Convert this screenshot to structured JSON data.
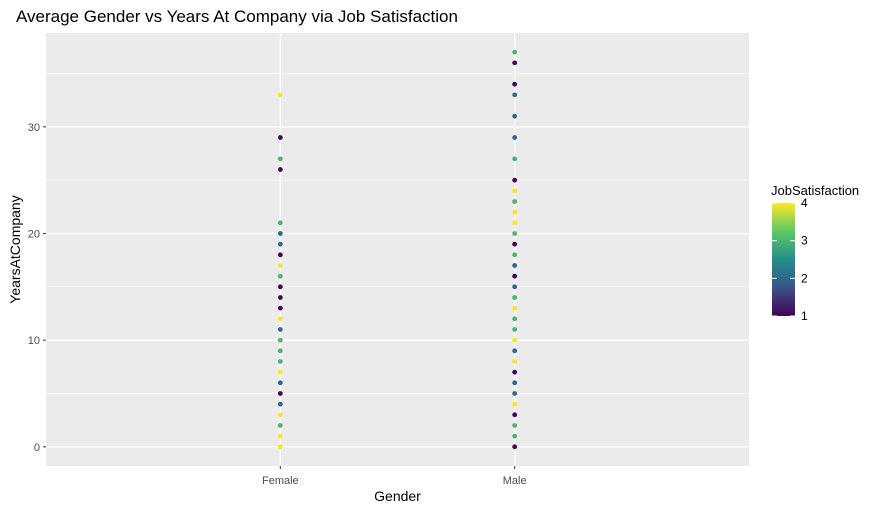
{
  "chart_data": {
    "type": "scatter",
    "title": "Average Gender vs Years At Company via Job Satisfaction",
    "xlabel": "Gender",
    "ylabel": "YearsAtCompany",
    "categories": [
      "Female",
      "Male"
    ],
    "y_ticks": [
      0,
      10,
      20,
      30
    ],
    "ylim": [
      -1.8,
      38.8
    ],
    "grid": true,
    "legend": {
      "title": "JobSatisfaction",
      "placement": "right",
      "ticks": [
        1,
        2,
        3,
        4
      ],
      "range": [
        1,
        4
      ],
      "colors": [
        "#440154",
        "#3B528B",
        "#21908C",
        "#5DC863",
        "#FDE725"
      ]
    },
    "points": [
      {
        "x": "Female",
        "y": 33,
        "c": 4
      },
      {
        "x": "Female",
        "y": 29,
        "c": 1
      },
      {
        "x": "Female",
        "y": 27,
        "c": 3
      },
      {
        "x": "Female",
        "y": 26,
        "c": 1
      },
      {
        "x": "Female",
        "y": 21,
        "c": 3
      },
      {
        "x": "Female",
        "y": 20,
        "c": 2
      },
      {
        "x": "Female",
        "y": 19,
        "c": 2
      },
      {
        "x": "Female",
        "y": 18,
        "c": 1
      },
      {
        "x": "Female",
        "y": 17,
        "c": 4
      },
      {
        "x": "Female",
        "y": 16,
        "c": 3
      },
      {
        "x": "Female",
        "y": 15,
        "c": 1
      },
      {
        "x": "Female",
        "y": 14,
        "c": 1
      },
      {
        "x": "Female",
        "y": 13,
        "c": 1
      },
      {
        "x": "Female",
        "y": 12,
        "c": 4
      },
      {
        "x": "Female",
        "y": 11,
        "c": 2
      },
      {
        "x": "Female",
        "y": 10,
        "c": 3
      },
      {
        "x": "Female",
        "y": 9,
        "c": 3
      },
      {
        "x": "Female",
        "y": 8,
        "c": 3
      },
      {
        "x": "Female",
        "y": 7,
        "c": 4
      },
      {
        "x": "Female",
        "y": 6,
        "c": 2
      },
      {
        "x": "Female",
        "y": 5,
        "c": 1
      },
      {
        "x": "Female",
        "y": 4,
        "c": 2
      },
      {
        "x": "Female",
        "y": 3,
        "c": 4
      },
      {
        "x": "Female",
        "y": 2,
        "c": 3
      },
      {
        "x": "Female",
        "y": 1,
        "c": 4
      },
      {
        "x": "Female",
        "y": 0,
        "c": 4
      },
      {
        "x": "Male",
        "y": 37,
        "c": 3
      },
      {
        "x": "Male",
        "y": 36,
        "c": 1
      },
      {
        "x": "Male",
        "y": 34,
        "c": 1
      },
      {
        "x": "Male",
        "y": 33,
        "c": 2
      },
      {
        "x": "Male",
        "y": 31,
        "c": 2
      },
      {
        "x": "Male",
        "y": 29,
        "c": 2
      },
      {
        "x": "Male",
        "y": 27,
        "c": 3
      },
      {
        "x": "Male",
        "y": 25,
        "c": 1
      },
      {
        "x": "Male",
        "y": 24,
        "c": 4
      },
      {
        "x": "Male",
        "y": 23,
        "c": 3
      },
      {
        "x": "Male",
        "y": 22,
        "c": 4
      },
      {
        "x": "Male",
        "y": 21,
        "c": 4
      },
      {
        "x": "Male",
        "y": 20,
        "c": 3
      },
      {
        "x": "Male",
        "y": 19,
        "c": 1
      },
      {
        "x": "Male",
        "y": 18,
        "c": 3
      },
      {
        "x": "Male",
        "y": 17,
        "c": 2
      },
      {
        "x": "Male",
        "y": 16,
        "c": 1
      },
      {
        "x": "Male",
        "y": 15,
        "c": 2
      },
      {
        "x": "Male",
        "y": 14,
        "c": 3
      },
      {
        "x": "Male",
        "y": 13,
        "c": 4
      },
      {
        "x": "Male",
        "y": 12,
        "c": 3
      },
      {
        "x": "Male",
        "y": 11,
        "c": 3
      },
      {
        "x": "Male",
        "y": 10,
        "c": 4
      },
      {
        "x": "Male",
        "y": 9,
        "c": 2
      },
      {
        "x": "Male",
        "y": 8,
        "c": 4
      },
      {
        "x": "Male",
        "y": 7,
        "c": 1
      },
      {
        "x": "Male",
        "y": 6,
        "c": 2
      },
      {
        "x": "Male",
        "y": 5,
        "c": 2
      },
      {
        "x": "Male",
        "y": 4,
        "c": 4
      },
      {
        "x": "Male",
        "y": 3,
        "c": 1
      },
      {
        "x": "Male",
        "y": 2,
        "c": 3
      },
      {
        "x": "Male",
        "y": 1,
        "c": 3
      },
      {
        "x": "Male",
        "y": 0,
        "c": 1
      }
    ]
  }
}
